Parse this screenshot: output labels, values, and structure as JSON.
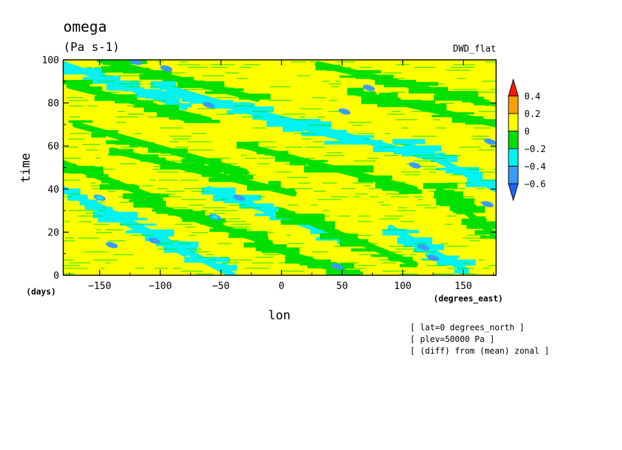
{
  "chart_data": {
    "type": "heatmap",
    "title": "omega",
    "subtitle": "(Pa s-1)",
    "dataset_label": "DWD_flat",
    "xlabel": "lon",
    "x_units": "(degrees_east)",
    "ylabel": "time",
    "y_units": "(days)",
    "xlim": [
      -180,
      177
    ],
    "ylim": [
      0,
      100
    ],
    "x_ticks": [
      -150,
      -100,
      -50,
      0,
      50,
      100,
      150
    ],
    "x_tick_labels": [
      "−150",
      "−100",
      "−50",
      "0",
      "50",
      "100",
      "150"
    ],
    "y_ticks": [
      0,
      20,
      40,
      60,
      80,
      100
    ],
    "y_tick_labels": [
      "0",
      "20",
      "40",
      "60",
      "80",
      "100"
    ],
    "colorbar": {
      "levels": [
        -0.6,
        -0.4,
        -0.2,
        0,
        0.2,
        0.4
      ],
      "level_labels": [
        "−0.6",
        "−0.4",
        "−0.2",
        "0",
        "0.2",
        "0.4"
      ],
      "colors": [
        "#1e64ff",
        "#3a9cff",
        "#00f2f2",
        "#00e000",
        "#ffff00",
        "#ffa000",
        "#ff1a00"
      ]
    },
    "annotations": [
      "[ lat=0 degrees_north ]",
      "[ plev=50000 Pa ]",
      "[ (diff) from (mean) zonal ]"
    ],
    "field_bands": [
      {
        "lon_start": -180,
        "time_start": 98,
        "lon_end": -80,
        "time_end": 78,
        "value": -0.25
      },
      {
        "lon_start": -175,
        "time_start": 88,
        "lon_end": -60,
        "time_end": 72,
        "value": -0.2
      },
      {
        "lon_start": -150,
        "time_start": 100,
        "lon_end": -20,
        "time_end": 82,
        "value": -0.2
      },
      {
        "lon_start": -100,
        "time_start": 88,
        "lon_end": 60,
        "time_end": 62,
        "value": -0.3
      },
      {
        "lon_start": -50,
        "time_start": 80,
        "lon_end": 120,
        "time_end": 55,
        "value": -0.25
      },
      {
        "lon_start": 30,
        "time_start": 98,
        "lon_end": 170,
        "time_end": 80,
        "value": -0.2
      },
      {
        "lon_start": 60,
        "time_start": 85,
        "lon_end": 177,
        "time_end": 70,
        "value": -0.2
      },
      {
        "lon_start": -170,
        "time_start": 70,
        "lon_end": -30,
        "time_end": 48,
        "value": -0.2
      },
      {
        "lon_start": -140,
        "time_start": 58,
        "lon_end": 10,
        "time_end": 38,
        "value": -0.2
      },
      {
        "lon_start": -180,
        "time_start": 52,
        "lon_end": -100,
        "time_end": 35,
        "value": -0.2
      },
      {
        "lon_start": -30,
        "time_start": 60,
        "lon_end": 110,
        "time_end": 40,
        "value": -0.2
      },
      {
        "lon_start": 100,
        "time_start": 62,
        "lon_end": 177,
        "time_end": 40,
        "value": -0.25
      },
      {
        "lon_start": -180,
        "time_start": 40,
        "lon_end": -80,
        "time_end": 10,
        "value": -0.25
      },
      {
        "lon_start": -150,
        "time_start": 32,
        "lon_end": -40,
        "time_end": 0,
        "value": -0.25
      },
      {
        "lon_start": -120,
        "time_start": 35,
        "lon_end": -10,
        "time_end": 15,
        "value": -0.2
      },
      {
        "lon_start": -60,
        "time_start": 40,
        "lon_end": 60,
        "time_end": 15,
        "value": -0.25
      },
      {
        "lon_start": 0,
        "time_start": 30,
        "lon_end": 110,
        "time_end": 5,
        "value": -0.2
      },
      {
        "lon_start": -20,
        "time_start": 15,
        "lon_end": 60,
        "time_end": 0,
        "value": -0.2
      },
      {
        "lon_start": 90,
        "time_start": 22,
        "lon_end": 150,
        "time_end": 3,
        "value": -0.25
      },
      {
        "lon_start": 130,
        "time_start": 40,
        "lon_end": 177,
        "time_end": 18,
        "value": -0.2
      }
    ],
    "minima": [
      {
        "lon": -95,
        "time": 96,
        "value": -0.6
      },
      {
        "lon": -120,
        "time": 99,
        "value": -0.5
      },
      {
        "lon": 52,
        "time": 76,
        "value": -0.5
      },
      {
        "lon": 110,
        "time": 51,
        "value": -0.5
      },
      {
        "lon": 72,
        "time": 87,
        "value": -0.45
      },
      {
        "lon": -60,
        "time": 79,
        "value": -0.45
      },
      {
        "lon": -35,
        "time": 36,
        "value": -0.5
      },
      {
        "lon": -140,
        "time": 14,
        "value": -0.45
      },
      {
        "lon": -105,
        "time": 16,
        "value": -0.45
      },
      {
        "lon": 117,
        "time": 13,
        "value": -0.5
      },
      {
        "lon": 125,
        "time": 8,
        "value": -0.45
      },
      {
        "lon": 46,
        "time": 4,
        "value": -0.45
      },
      {
        "lon": -55,
        "time": 27,
        "value": -0.4
      },
      {
        "lon": 170,
        "time": 33,
        "value": -0.45
      },
      {
        "lon": 172,
        "time": 62,
        "value": -0.45
      },
      {
        "lon": -150,
        "time": 36,
        "value": -0.4
      }
    ]
  }
}
